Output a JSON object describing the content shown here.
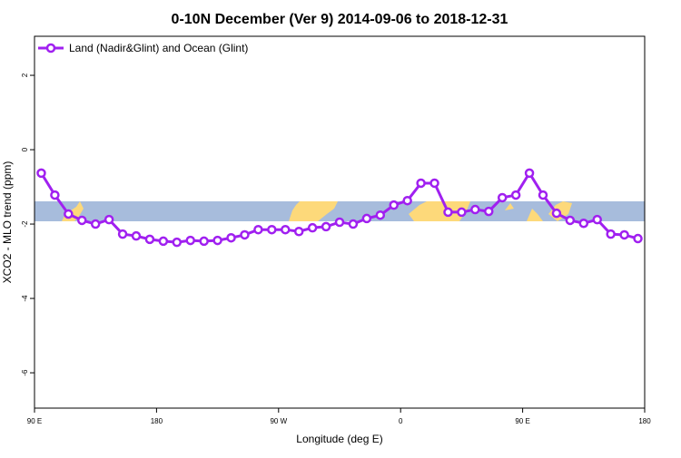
{
  "chart_data": {
    "type": "line",
    "title": "0-10N December (Ver 9)   2014-09-06 to 2018-12-31",
    "x_label": "Longitude (deg E)",
    "y_label": "XCO2 - MLO trend (ppm)",
    "x": [
      95,
      105,
      115,
      125,
      135,
      145,
      155,
      165,
      175,
      185,
      195,
      205,
      215,
      225,
      235,
      245,
      255,
      265,
      275,
      285,
      295,
      305,
      315,
      325,
      335,
      345,
      355,
      365,
      375,
      385,
      395,
      405,
      415,
      425,
      435,
      445,
      455,
      465,
      475,
      485,
      495,
      505,
      515,
      525,
      535
    ],
    "series": [
      {
        "name": "Land (Nadir&Glint) and Ocean (Glint)",
        "color": "#a020f0",
        "values": [
          -0.63,
          -1.22,
          -1.73,
          -1.9,
          -2.0,
          -1.88,
          -2.27,
          -2.32,
          -2.41,
          -2.46,
          -2.49,
          -2.44,
          -2.46,
          -2.44,
          -2.37,
          -2.29,
          -2.15,
          -2.15,
          -2.15,
          -2.2,
          -2.1,
          -2.07,
          -1.95,
          -2.0,
          -1.85,
          -1.76,
          -1.49,
          -1.37,
          -0.9,
          -0.9,
          -1.68,
          -1.68,
          -1.61,
          -1.66,
          -1.29,
          -1.22,
          -0.63,
          -1.22,
          -1.71,
          -1.9,
          -1.98,
          -1.88,
          -2.27,
          -2.29,
          -2.39
        ]
      }
    ],
    "xlim": [
      90,
      540
    ],
    "xticks": [
      {
        "value": 90,
        "label": "90 E"
      },
      180,
      {
        "value": 270,
        "label": "90 W"
      },
      {
        "value": 360,
        "label": "0"
      },
      {
        "value": 450,
        "label": "90 E"
      },
      {
        "value": 540,
        "label": "180"
      }
    ],
    "ylim": [
      -6.95,
      3.05
    ],
    "yticks": [
      -6,
      -4,
      -2,
      0,
      2
    ],
    "legend": "top-left"
  }
}
